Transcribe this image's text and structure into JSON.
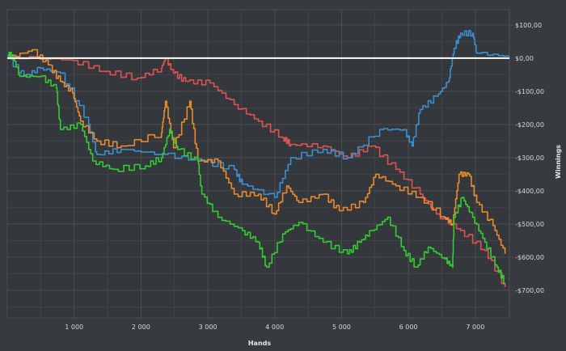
{
  "chart_data": {
    "type": "line",
    "title": "",
    "xlabel": "Hands",
    "ylabel": "Winnings",
    "xlim": [
      0,
      7510
    ],
    "ylim": [
      -783,
      146
    ],
    "grid": true,
    "legend": "none",
    "x_ticks": [
      {
        "value": 1000,
        "label": "1 000"
      },
      {
        "value": 2000,
        "label": "2 000"
      },
      {
        "value": 3000,
        "label": "3 000"
      },
      {
        "value": 4000,
        "label": "4 000"
      },
      {
        "value": 5000,
        "label": "5 000"
      },
      {
        "value": 6000,
        "label": "6 000"
      },
      {
        "value": 7000,
        "label": "7 000"
      }
    ],
    "y_ticks": [
      {
        "value": 100,
        "label": "$100,00"
      },
      {
        "value": 0,
        "label": "$0,00"
      },
      {
        "value": -100,
        "label": "-$100,00"
      },
      {
        "value": -200,
        "label": "-$200,00"
      },
      {
        "value": -300,
        "label": "-$300,00"
      },
      {
        "value": -400,
        "label": "-$400,00"
      },
      {
        "value": -500,
        "label": "-$500,00"
      },
      {
        "value": -600,
        "label": "-$600,00"
      },
      {
        "value": -700,
        "label": "-$700,00"
      }
    ],
    "zero_line_color": "#ffffff",
    "series": [
      {
        "color": "#e05252",
        "points": [
          [
            8,
            5
          ],
          [
            976,
            -7
          ],
          [
            1459,
            -40
          ],
          [
            1943,
            -60
          ],
          [
            2306,
            -30
          ],
          [
            2366,
            0
          ],
          [
            2487,
            -45
          ],
          [
            2668,
            -70
          ],
          [
            3031,
            -75
          ],
          [
            3394,
            -140
          ],
          [
            3756,
            -190
          ],
          [
            4119,
            -240
          ],
          [
            4240,
            -260
          ],
          [
            4724,
            -265
          ],
          [
            5086,
            -300
          ],
          [
            5449,
            -265
          ],
          [
            5812,
            -335
          ],
          [
            6175,
            -410
          ],
          [
            6417,
            -470
          ],
          [
            6780,
            -520
          ],
          [
            7143,
            -580
          ],
          [
            7445,
            -690
          ]
        ]
      },
      {
        "color": "#3a8fd0",
        "points": [
          [
            8,
            0
          ],
          [
            250,
            -55
          ],
          [
            492,
            -30
          ],
          [
            794,
            -45
          ],
          [
            1218,
            -200
          ],
          [
            1339,
            -290
          ],
          [
            1701,
            -275
          ],
          [
            2306,
            -290
          ],
          [
            2910,
            -310
          ],
          [
            3394,
            -335
          ],
          [
            3515,
            -380
          ],
          [
            3998,
            -420
          ],
          [
            4240,
            -300
          ],
          [
            4724,
            -275
          ],
          [
            5086,
            -300
          ],
          [
            5570,
            -215
          ],
          [
            5933,
            -215
          ],
          [
            6054,
            -265
          ],
          [
            6175,
            -155
          ],
          [
            6417,
            -115
          ],
          [
            6598,
            -70
          ],
          [
            6683,
            30
          ],
          [
            6780,
            75
          ],
          [
            6961,
            75
          ],
          [
            7022,
            15
          ],
          [
            7506,
            5
          ]
        ]
      },
      {
        "color": "#e88a2e",
        "points": [
          [
            8,
            0
          ],
          [
            371,
            25
          ],
          [
            613,
            -20
          ],
          [
            794,
            -70
          ],
          [
            976,
            -105
          ],
          [
            1097,
            -190
          ],
          [
            1339,
            -250
          ],
          [
            1701,
            -265
          ],
          [
            2306,
            -225
          ],
          [
            2366,
            -130
          ],
          [
            2487,
            -270
          ],
          [
            2729,
            -130
          ],
          [
            2850,
            -310
          ],
          [
            3152,
            -310
          ],
          [
            3394,
            -410
          ],
          [
            3756,
            -410
          ],
          [
            3998,
            -470
          ],
          [
            4179,
            -385
          ],
          [
            4361,
            -435
          ],
          [
            4724,
            -410
          ],
          [
            4965,
            -460
          ],
          [
            5328,
            -435
          ],
          [
            5510,
            -350
          ],
          [
            5812,
            -385
          ],
          [
            6175,
            -420
          ],
          [
            6538,
            -480
          ],
          [
            6659,
            -500
          ],
          [
            6756,
            -350
          ],
          [
            6901,
            -350
          ],
          [
            7022,
            -435
          ],
          [
            7264,
            -505
          ],
          [
            7445,
            -590
          ]
        ]
      },
      {
        "color": "#33cc33",
        "points": [
          [
            8,
            10
          ],
          [
            69,
            10
          ],
          [
            190,
            -55
          ],
          [
            492,
            -55
          ],
          [
            734,
            -90
          ],
          [
            794,
            -215
          ],
          [
            1097,
            -200
          ],
          [
            1278,
            -310
          ],
          [
            1580,
            -335
          ],
          [
            2064,
            -325
          ],
          [
            2306,
            -300
          ],
          [
            2427,
            -215
          ],
          [
            2548,
            -275
          ],
          [
            2850,
            -310
          ],
          [
            2910,
            -410
          ],
          [
            3152,
            -480
          ],
          [
            3515,
            -520
          ],
          [
            3756,
            -555
          ],
          [
            3877,
            -630
          ],
          [
            4119,
            -530
          ],
          [
            4361,
            -495
          ],
          [
            4724,
            -555
          ],
          [
            5086,
            -590
          ],
          [
            5268,
            -555
          ],
          [
            5449,
            -520
          ],
          [
            5691,
            -480
          ],
          [
            5933,
            -580
          ],
          [
            6114,
            -630
          ],
          [
            6296,
            -570
          ],
          [
            6538,
            -605
          ],
          [
            6659,
            -630
          ],
          [
            6683,
            -480
          ],
          [
            6804,
            -420
          ],
          [
            6961,
            -480
          ],
          [
            7143,
            -555
          ],
          [
            7324,
            -630
          ],
          [
            7445,
            -680
          ]
        ]
      }
    ]
  }
}
